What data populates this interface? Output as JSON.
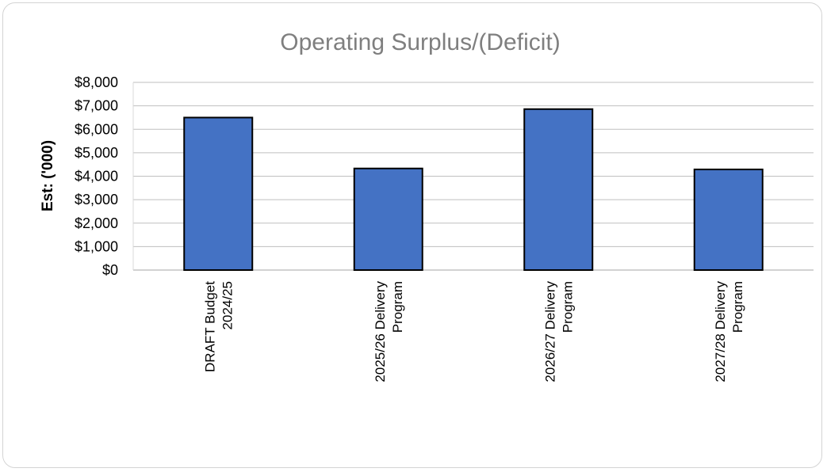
{
  "chart_data": {
    "type": "bar",
    "title": "Operating Surplus/(Deficit)",
    "xlabel": "",
    "ylabel": "Est: ('000)",
    "categories": [
      [
        "DRAFT Budget",
        "2024/25"
      ],
      [
        "2025/26 Delivery",
        "Program"
      ],
      [
        "2026/27 Delivery",
        "Program"
      ],
      [
        "2027/28 Delivery",
        "Program"
      ]
    ],
    "values": [
      6500,
      4330,
      6860,
      4290
    ],
    "ylim": [
      0,
      8000
    ],
    "yticks": [
      "$0",
      "$1,000",
      "$2,000",
      "$3,000",
      "$4,000",
      "$5,000",
      "$6,000",
      "$7,000",
      "$8,000"
    ],
    "grid": true,
    "legend": "none",
    "colors": {
      "bar": "#4472c4",
      "bar_outline": "#000000",
      "grid": "#bfbfbf",
      "title": "#7f7f7f"
    }
  }
}
